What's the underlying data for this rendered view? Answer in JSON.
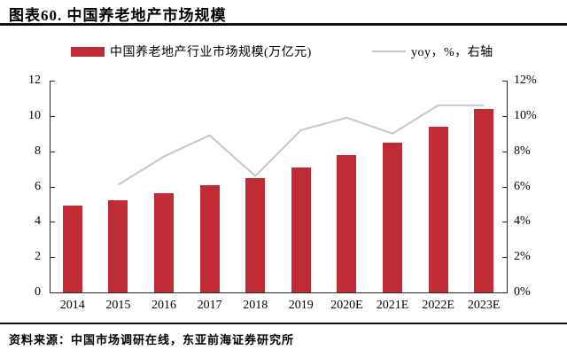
{
  "header": {
    "title": "图表60. 中国养老地产市场规模"
  },
  "legend": {
    "bar": {
      "label": "中国养老地产行业市场规模(万亿元)",
      "color": "#BF2C34"
    },
    "line": {
      "label": "yoy，%，右轴",
      "color": "#C6C6C6"
    }
  },
  "footer": {
    "source": "资料来源：中国市场调研在线，东亚前海证券研究所"
  },
  "chart_data": {
    "type": "bar",
    "subtype": "bar+line combo, dual axis",
    "title": "中国养老地产市场规模",
    "categories": [
      "2014",
      "2015",
      "2016",
      "2017",
      "2018",
      "2019",
      "2020E",
      "2021E",
      "2022E",
      "2023E"
    ],
    "series": [
      {
        "name": "中国养老地产行业市场规模(万亿元)",
        "type": "bar",
        "yaxis": "left",
        "color": "#BF2C34",
        "values": [
          4.9,
          5.2,
          5.6,
          6.1,
          6.5,
          7.1,
          7.8,
          8.5,
          9.4,
          10.4
        ]
      },
      {
        "name": "yoy，%，右轴",
        "type": "line",
        "yaxis": "right",
        "color": "#C6C6C6",
        "values": [
          null,
          6.1,
          7.7,
          8.9,
          6.6,
          9.2,
          9.9,
          9.0,
          10.6,
          10.6
        ]
      }
    ],
    "left_axis": {
      "min": 0,
      "max": 12,
      "step": 2,
      "tick_labels": [
        "0",
        "2",
        "4",
        "6",
        "8",
        "10",
        "12"
      ]
    },
    "right_axis": {
      "min": 0,
      "max": 12,
      "step": 2,
      "unit": "%",
      "tick_labels": [
        "0%",
        "2%",
        "4%",
        "6%",
        "8%",
        "10%",
        "12%"
      ]
    },
    "grid": false,
    "legend_position": "top"
  }
}
